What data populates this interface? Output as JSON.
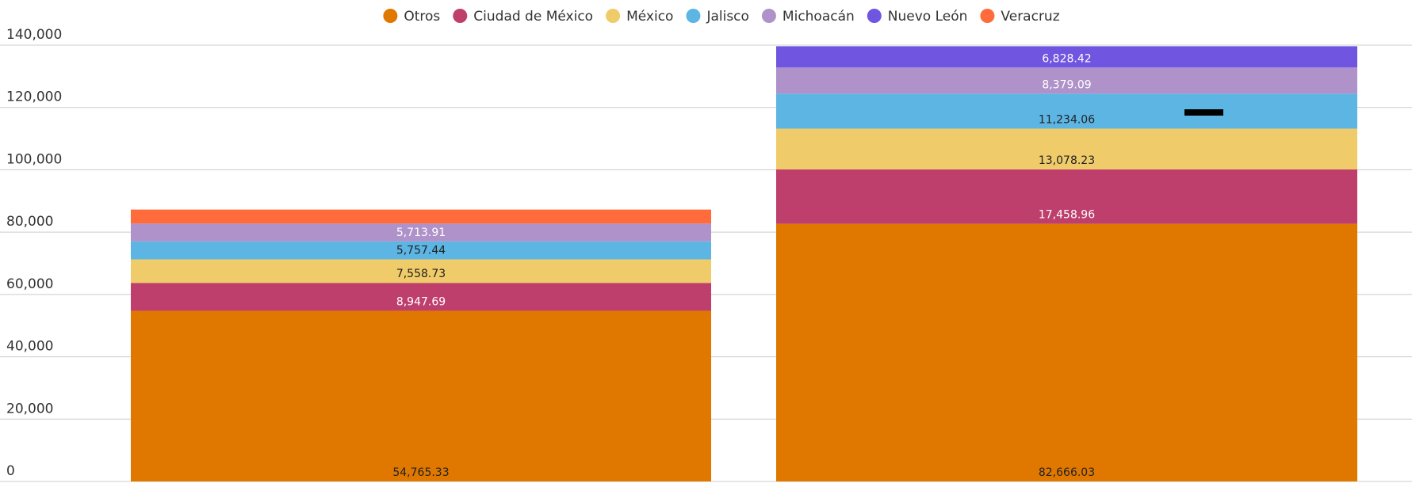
{
  "chart_data": {
    "type": "stacked_bar",
    "categories": [
      null,
      null
    ],
    "series": [
      {
        "name": "Otros",
        "color": "#e07800",
        "label_color": "#222222",
        "values": [
          54765.33,
          82666.03
        ],
        "value_labels": [
          "54,765.33",
          "82,666.03"
        ]
      },
      {
        "name": "Ciudad de México",
        "color": "#bf3f6c",
        "label_color": "#ffffff",
        "values": [
          8947.69,
          17458.96
        ],
        "value_labels": [
          "8,947.69",
          "17,458.96"
        ]
      },
      {
        "name": "México",
        "color": "#f0cb6a",
        "label_color": "#222222",
        "values": [
          7558.73,
          13078.23
        ],
        "value_labels": [
          "7,558.73",
          "13,078.23"
        ]
      },
      {
        "name": "Jalisco",
        "color": "#5db5e4",
        "label_color": "#222222",
        "values": [
          5757.44,
          11234.06
        ],
        "value_labels": [
          "5,757.44",
          "11,234.06"
        ]
      },
      {
        "name": "Michoacán",
        "color": "#ae92c9",
        "label_color": "#ffffff",
        "values": [
          5713.91,
          8379.09
        ],
        "value_labels": [
          "5,713.91",
          "8,379.09"
        ]
      },
      {
        "name": "Nuevo León",
        "color": "#6f55e0",
        "label_color": "#ffffff",
        "values": [
          null,
          6828.42
        ],
        "value_labels": [
          null,
          "6,828.42"
        ]
      },
      {
        "name": "Veracruz",
        "color": "#ff6b3b",
        "label_color": "#ffffff",
        "values": [
          4500,
          null
        ],
        "value_labels": [
          null,
          null
        ]
      }
    ],
    "ylim": [
      0,
      140000
    ],
    "yticks": [
      0,
      {
        "value": 20000,
        "label": "20,000"
      },
      {
        "value": 40000,
        "label": "40,000"
      },
      {
        "value": 60000,
        "label": "60,000"
      },
      {
        "value": 80000,
        "label": "80,000"
      },
      {
        "value": 100000,
        "label": "100,000"
      },
      {
        "value": 120000,
        "label": "120,000"
      },
      {
        "value": 140000,
        "label": "140,000"
      }
    ],
    "grid": true,
    "legend": "top"
  }
}
